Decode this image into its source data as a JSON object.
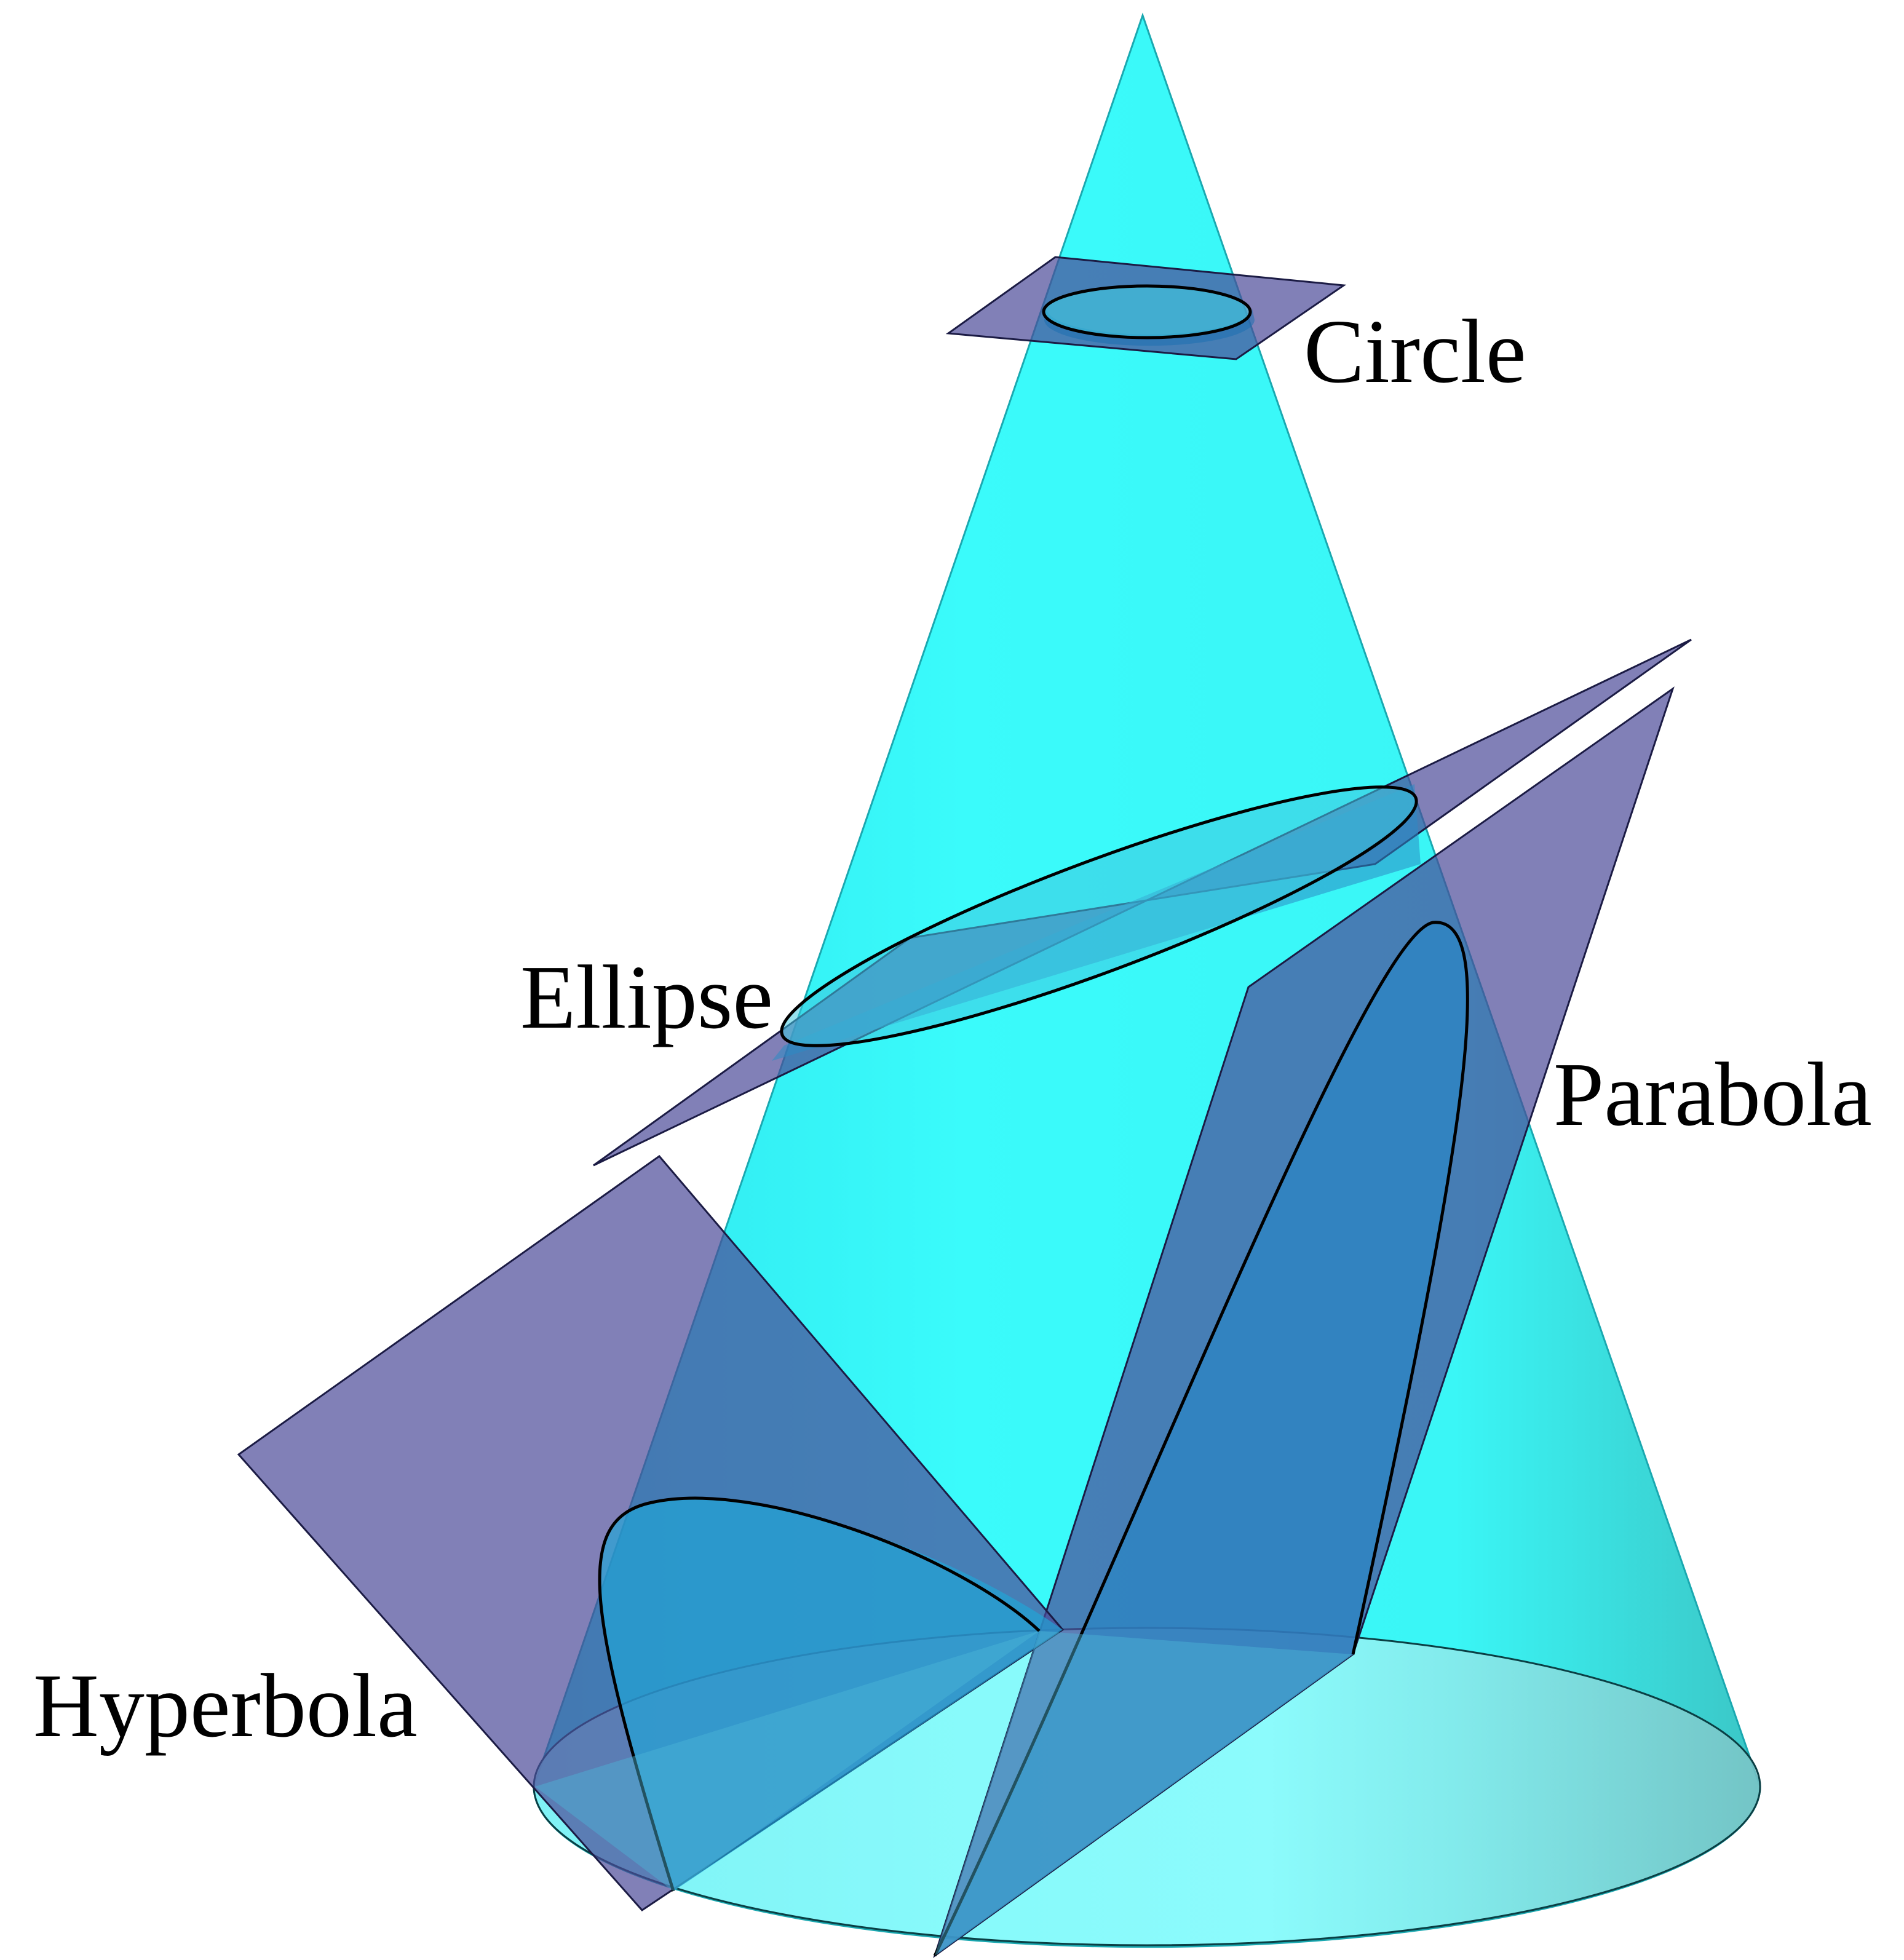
{
  "labels": {
    "circle": "Circle",
    "ellipse": "Ellipse",
    "parabola": "Parabola",
    "hyperbola": "Hyperbola"
  },
  "colors": {
    "cone": "#2EF6F6",
    "plane": "#4C4A99",
    "curve": "#000000",
    "base": "#A4F9FA"
  }
}
